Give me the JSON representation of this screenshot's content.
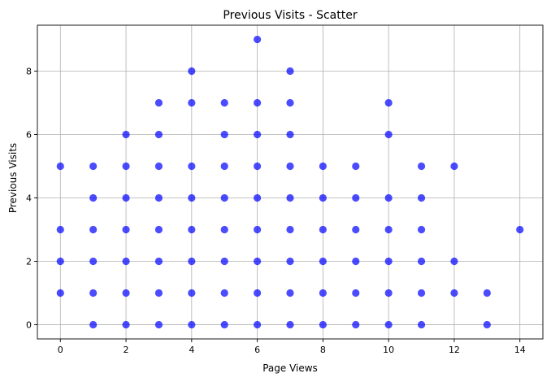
{
  "chart_data": {
    "type": "scatter",
    "title": "Previous Visits - Scatter",
    "xlabel": "Page Views",
    "ylabel": "Previous Visits",
    "xlim": [
      -0.7,
      14.7
    ],
    "ylim": [
      -0.45,
      9.45
    ],
    "xticks": [
      0,
      2,
      4,
      6,
      8,
      10,
      12,
      14
    ],
    "yticks": [
      0,
      2,
      4,
      6,
      8
    ],
    "grid": true,
    "marker_color": "#0000ff",
    "marker_alpha": 0.7,
    "points": [
      [
        0,
        1
      ],
      [
        0,
        2
      ],
      [
        0,
        3
      ],
      [
        0,
        5
      ],
      [
        1,
        0
      ],
      [
        1,
        1
      ],
      [
        1,
        2
      ],
      [
        1,
        3
      ],
      [
        1,
        4
      ],
      [
        1,
        5
      ],
      [
        2,
        0
      ],
      [
        2,
        1
      ],
      [
        2,
        2
      ],
      [
        2,
        3
      ],
      [
        2,
        4
      ],
      [
        2,
        5
      ],
      [
        2,
        6
      ],
      [
        3,
        0
      ],
      [
        3,
        1
      ],
      [
        3,
        2
      ],
      [
        3,
        3
      ],
      [
        3,
        4
      ],
      [
        3,
        5
      ],
      [
        3,
        6
      ],
      [
        3,
        7
      ],
      [
        4,
        0
      ],
      [
        4,
        1
      ],
      [
        4,
        2
      ],
      [
        4,
        3
      ],
      [
        4,
        4
      ],
      [
        4,
        5
      ],
      [
        4,
        7
      ],
      [
        4,
        8
      ],
      [
        5,
        0
      ],
      [
        5,
        1
      ],
      [
        5,
        2
      ],
      [
        5,
        3
      ],
      [
        5,
        4
      ],
      [
        5,
        5
      ],
      [
        5,
        6
      ],
      [
        5,
        7
      ],
      [
        6,
        0
      ],
      [
        6,
        1
      ],
      [
        6,
        2
      ],
      [
        6,
        3
      ],
      [
        6,
        4
      ],
      [
        6,
        5
      ],
      [
        6,
        6
      ],
      [
        6,
        7
      ],
      [
        6,
        9
      ],
      [
        7,
        0
      ],
      [
        7,
        1
      ],
      [
        7,
        2
      ],
      [
        7,
        3
      ],
      [
        7,
        4
      ],
      [
        7,
        5
      ],
      [
        7,
        6
      ],
      [
        7,
        7
      ],
      [
        7,
        8
      ],
      [
        8,
        0
      ],
      [
        8,
        1
      ],
      [
        8,
        2
      ],
      [
        8,
        3
      ],
      [
        8,
        4
      ],
      [
        8,
        5
      ],
      [
        9,
        0
      ],
      [
        9,
        1
      ],
      [
        9,
        2
      ],
      [
        9,
        3
      ],
      [
        9,
        4
      ],
      [
        9,
        5
      ],
      [
        10,
        0
      ],
      [
        10,
        1
      ],
      [
        10,
        2
      ],
      [
        10,
        3
      ],
      [
        10,
        4
      ],
      [
        10,
        6
      ],
      [
        10,
        7
      ],
      [
        11,
        0
      ],
      [
        11,
        1
      ],
      [
        11,
        2
      ],
      [
        11,
        3
      ],
      [
        11,
        4
      ],
      [
        11,
        5
      ],
      [
        12,
        1
      ],
      [
        12,
        2
      ],
      [
        12,
        5
      ],
      [
        13,
        0
      ],
      [
        13,
        1
      ],
      [
        14,
        3
      ]
    ]
  }
}
